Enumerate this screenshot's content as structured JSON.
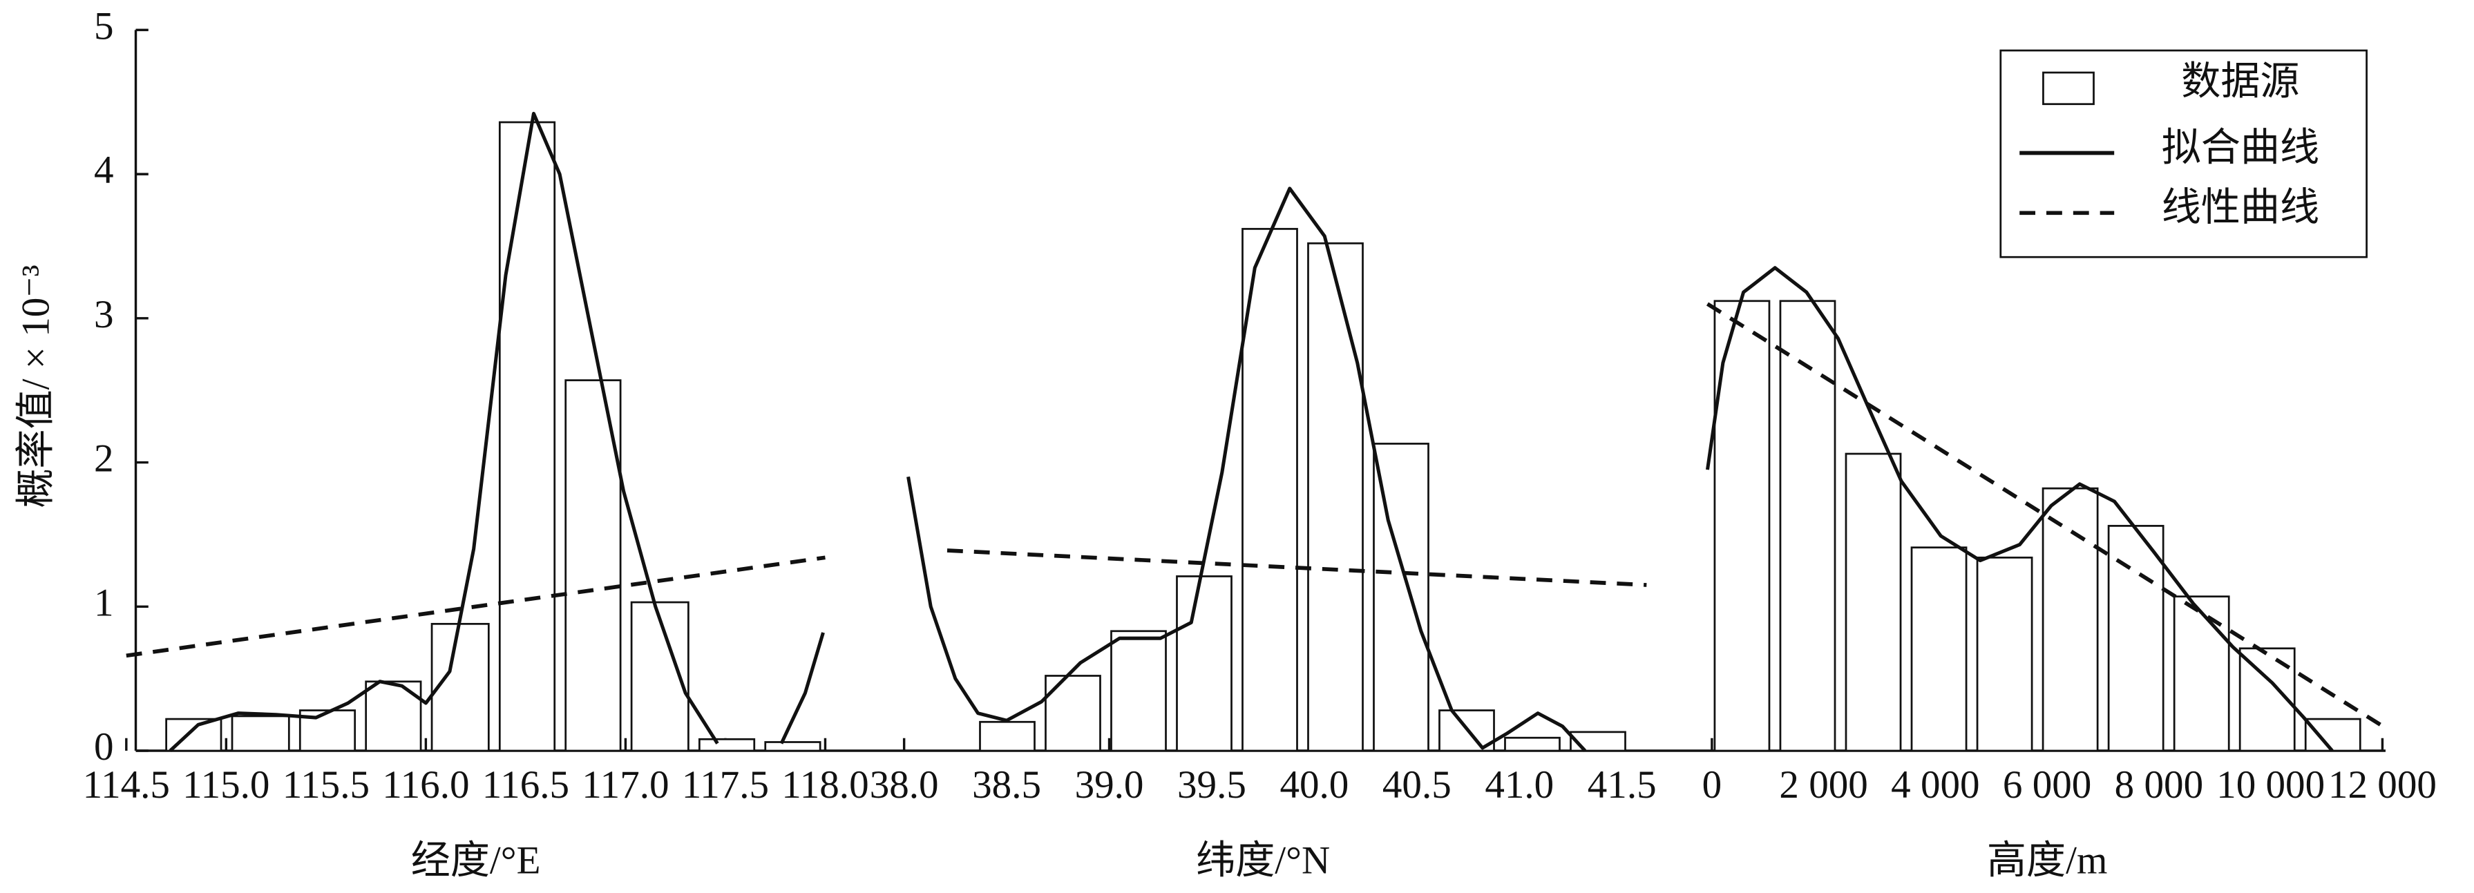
{
  "chart_data": [
    {
      "type": "histogram",
      "xlabel": "经度/°E",
      "ylabel": "概率值/ × 10⁻³",
      "xlim": [
        114.5,
        118.0
      ],
      "xticks": [
        {
          "value": 114.5,
          "label": "114.5"
        },
        {
          "value": 115.0,
          "label": "115.0"
        },
        {
          "value": 115.5,
          "label": "115.5"
        },
        {
          "value": 116.0,
          "label": "116.0"
        },
        {
          "value": 116.5,
          "label": "116.5"
        },
        {
          "value": 117.0,
          "label": "117.0"
        },
        {
          "value": 117.5,
          "label": "117.5"
        },
        {
          "value": 118.0,
          "label": "118.0"
        }
      ],
      "ylim": [
        0,
        5
      ],
      "yticks": [
        0,
        1,
        2,
        3,
        4,
        5
      ],
      "bins": [
        114.7,
        115.03,
        115.37,
        115.7,
        116.03,
        116.37,
        116.7,
        117.03,
        117.37,
        117.7,
        118.03
      ],
      "counts": [
        0.22,
        0.24,
        0.28,
        0.48,
        0.88,
        4.36,
        2.57,
        1.03,
        0.08,
        0.06
      ],
      "fit": {
        "x": [
          114.72,
          114.86,
          115.06,
          115.25,
          115.45,
          115.61,
          115.77,
          115.88,
          116.0,
          116.12,
          116.24,
          116.4,
          116.54,
          116.67,
          116.83,
          116.99,
          117.15,
          117.3,
          117.46,
          null,
          117.78,
          117.9,
          117.99
        ],
        "y": [
          0.0,
          0.18,
          0.26,
          0.25,
          0.23,
          0.33,
          0.48,
          0.45,
          0.33,
          0.55,
          1.4,
          3.3,
          4.42,
          4.0,
          2.9,
          1.8,
          1.0,
          0.4,
          0.05,
          null,
          0.05,
          0.4,
          0.82
        ]
      },
      "linear": {
        "x": [
          114.5,
          118.0
        ],
        "y": [
          0.66,
          1.34
        ]
      }
    },
    {
      "type": "histogram",
      "xlabel": "纬度/°N",
      "xlim": [
        38.0,
        41.5
      ],
      "xticks": [
        {
          "value": 38.0,
          "label": "38.0"
        },
        {
          "value": 38.5,
          "label": "38.5"
        },
        {
          "value": 39.0,
          "label": "39.0"
        },
        {
          "value": 39.5,
          "label": "39.5"
        },
        {
          "value": 40.0,
          "label": "40.0"
        },
        40.5,
        {
          "value": 41.0,
          "label": "41.0"
        },
        41.5
      ],
      "ylim": [
        0,
        5
      ],
      "bins": [
        38.37,
        38.69,
        39.01,
        39.33,
        39.65,
        39.97,
        40.29,
        40.61,
        40.93,
        41.25,
        41.57
      ],
      "counts": [
        0.2,
        0.52,
        0.83,
        1.21,
        3.62,
        3.52,
        2.13,
        0.28,
        0.09,
        0.13
      ],
      "fit": {
        "x": [
          38.02,
          38.13,
          38.25,
          38.36,
          38.5,
          38.67,
          38.86,
          39.05,
          39.25,
          39.4,
          39.55,
          39.71,
          39.88,
          40.05,
          40.21,
          40.36,
          40.52,
          40.67,
          40.82,
          40.94,
          41.09,
          41.21,
          41.32
        ],
        "y": [
          1.9,
          1.0,
          0.5,
          0.26,
          0.21,
          0.34,
          0.61,
          0.78,
          0.78,
          0.89,
          1.93,
          3.35,
          3.9,
          3.57,
          2.69,
          1.6,
          0.83,
          0.28,
          0.02,
          0.12,
          0.26,
          0.17,
          0.0
        ]
      },
      "linear": {
        "x": [
          38.21,
          41.62
        ],
        "y": [
          1.39,
          1.15
        ]
      }
    },
    {
      "type": "histogram",
      "xlabel": "高度/m",
      "xlim": [
        0,
        12000
      ],
      "xticks": [
        0,
        {
          "value": 2000,
          "label": "2 000"
        },
        {
          "value": 4000,
          "label": "4 000"
        },
        {
          "value": 6000,
          "label": "6 000"
        },
        {
          "value": 8000,
          "label": "8 000"
        },
        {
          "value": 10000,
          "label": "10 000"
        },
        {
          "value": 12000,
          "label": "12 000"
        }
      ],
      "ylim": [
        0,
        5
      ],
      "bins": [
        50,
        1225,
        2400,
        3575,
        4750,
        5925,
        7100,
        8275,
        9450,
        10625,
        11800
      ],
      "counts": [
        3.12,
        3.12,
        2.06,
        1.41,
        1.34,
        1.82,
        1.56,
        1.07,
        0.71,
        0.22
      ],
      "fit": {
        "x": [
          -80,
          198,
          565,
          1130,
          1695,
          2260,
          2825,
          3390,
          4096,
          4802,
          5508,
          6073,
          6582,
          7203,
          7910,
          8616,
          9322,
          10028,
          10593,
          11102
        ],
        "y": [
          1.95,
          2.69,
          3.18,
          3.35,
          3.18,
          2.86,
          2.36,
          1.87,
          1.49,
          1.32,
          1.43,
          1.7,
          1.85,
          1.73,
          1.38,
          1.02,
          0.72,
          0.47,
          0.23,
          0.0
        ]
      },
      "linear": {
        "x": [
          -80,
          12090
        ],
        "y": [
          3.1,
          0.15
        ]
      }
    }
  ],
  "legend": [
    "数据源",
    "拟合曲线",
    "线性曲线"
  ]
}
